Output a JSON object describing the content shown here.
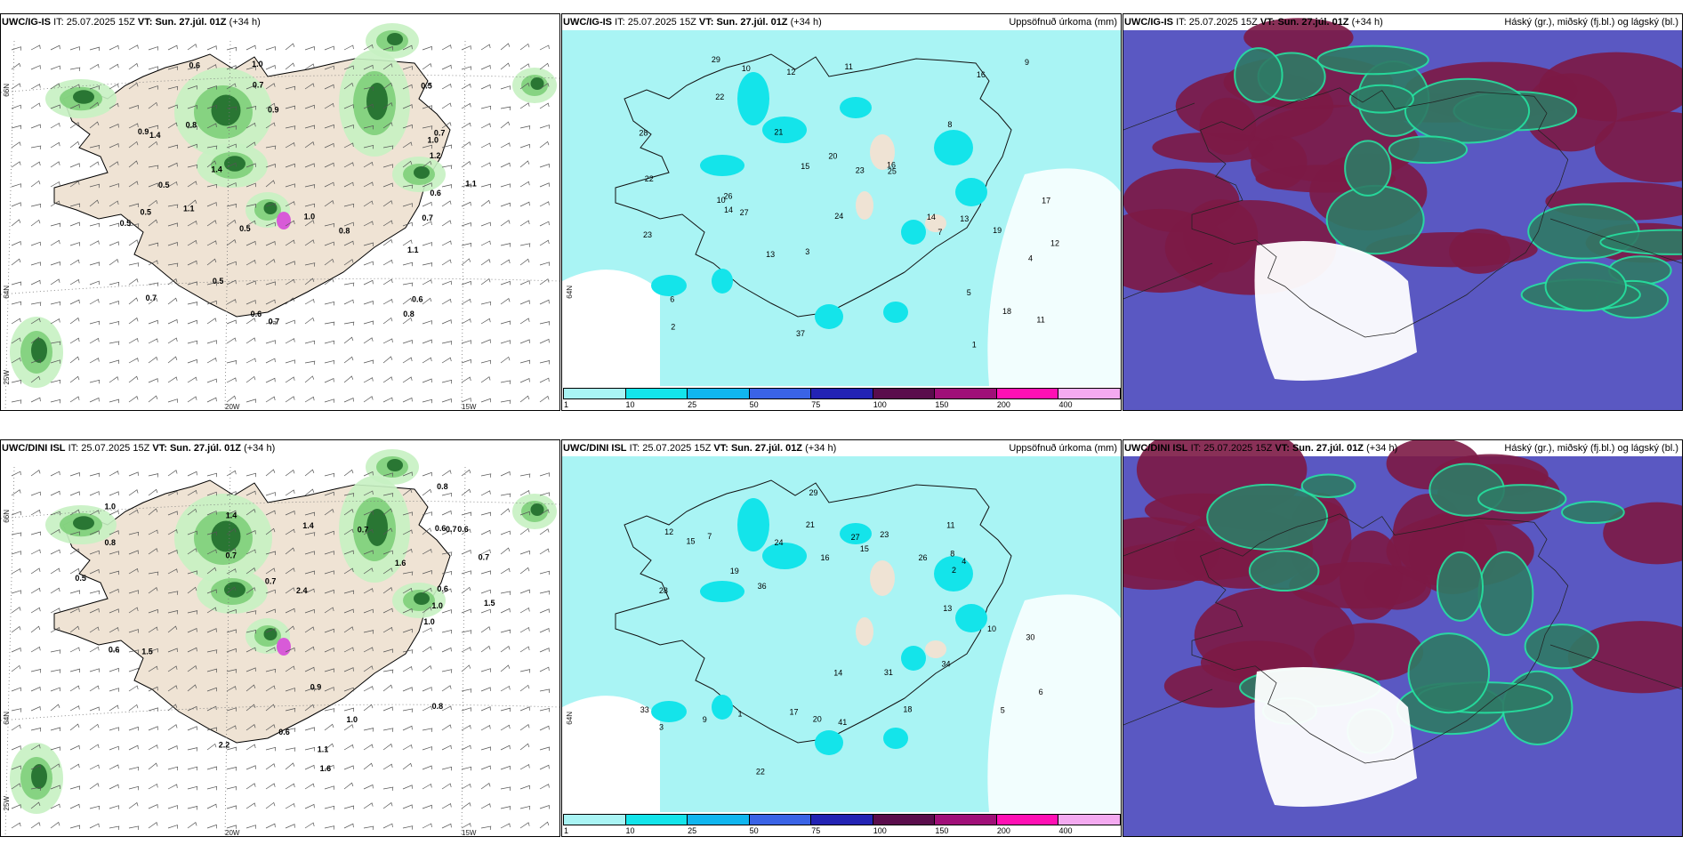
{
  "colors": {
    "land": "#efe3d4",
    "precip_light": "#a9f4f4",
    "precip_strong": "#14e4ea",
    "green_light": "#c6f1c2",
    "green_mid": "#7ecf7a",
    "green_dark": "#1f6b2a",
    "cloud_high": "#7c1a45",
    "cloud_mid": "#5a58c2",
    "cloud_low": "#2f7a66",
    "cloud_edge": "#25e3a0"
  },
  "rows": [
    {
      "model": "UWC/IG-IS",
      "it_label": "IT:",
      "it_value": "25.07.2025 15Z",
      "vt_label": "VT:",
      "vt_value": "Sun. 27.júl. 01Z",
      "lead": "(+34 h)",
      "precip_title": "Uppsöfnuð úrkoma (mm)",
      "cloud_title": "Háský (gr.), miðský (fj.bl.) og lágský (bl.)"
    },
    {
      "model": "UWC/DINI ISL",
      "it_label": "IT:",
      "it_value": "25.07.2025 15Z",
      "vt_label": "VT:",
      "vt_value": "Sun. 27.júl. 01Z",
      "lead": "(+34 h)",
      "precip_title": "Uppsöfnuð úrkoma (mm)",
      "cloud_title": "Háský (gr.), miðský (fj.bl.) og lágský (bl.)"
    }
  ],
  "colorbar": {
    "ticks": [
      "1",
      "10",
      "25",
      "50",
      "75",
      "100",
      "150",
      "200",
      "400"
    ],
    "colors": [
      "#a9f4f4",
      "#14e4ea",
      "#10b6ef",
      "#3a63e6",
      "#2323b4",
      "#5a0d4c",
      "#a00f78",
      "#ff10b4",
      "#f4aaf0"
    ]
  },
  "axes": {
    "lat_66": "66N",
    "lat_64": "64N",
    "lon_25": "25W",
    "lon_20": "20W",
    "lon_15": "15W"
  },
  "wind_labels_top": [
    "1.0",
    "0.6",
    "0.8",
    "0.9",
    "1.1",
    "0.5",
    "0.7",
    "1.1",
    "1.2",
    "0.6",
    "0.5",
    "0.8",
    "0.7",
    "1.0",
    "1.1",
    "1.4",
    "0.6",
    "0.8",
    "0.7",
    "0.5",
    "0.5",
    "0.9",
    "0.6",
    "1.4",
    "0.7",
    "1.0",
    "0.5",
    "0.7",
    "0.5"
  ],
  "wind_labels_bottom": [
    "0.6",
    "1.0",
    "1.5",
    "1.6",
    "2.2",
    "2.4",
    "1.4",
    "1.0",
    "0.8",
    "1.1",
    "0.6",
    "0.7",
    "0.9",
    "1.6",
    "0.6",
    "1.0",
    "0.7",
    "0.5",
    "1.5",
    "1.4",
    "0.8",
    "0.7",
    "0.6",
    "0.7",
    "1.0",
    "0.8",
    "0.6",
    "0.7"
  ],
  "precip_labels_top": [
    "6",
    "11",
    "12",
    "12",
    "13",
    "15",
    "17",
    "16",
    "14",
    "26",
    "11",
    "10",
    "20",
    "23",
    "27",
    "22",
    "18",
    "29",
    "10",
    "13",
    "21",
    "24",
    "22",
    "23",
    "28",
    "19",
    "25",
    "14",
    "16",
    "37",
    "3",
    "5",
    "7",
    "9",
    "8",
    "4",
    "2",
    "1"
  ],
  "precip_labels_bottom": [
    "15",
    "14",
    "12",
    "13",
    "16",
    "18",
    "23",
    "27",
    "21",
    "20",
    "33",
    "34",
    "31",
    "36",
    "30",
    "29",
    "26",
    "24",
    "19",
    "41",
    "22",
    "17",
    "28",
    "15",
    "9",
    "8",
    "7",
    "6",
    "5",
    "4",
    "3",
    "2",
    "1",
    "10",
    "11"
  ]
}
